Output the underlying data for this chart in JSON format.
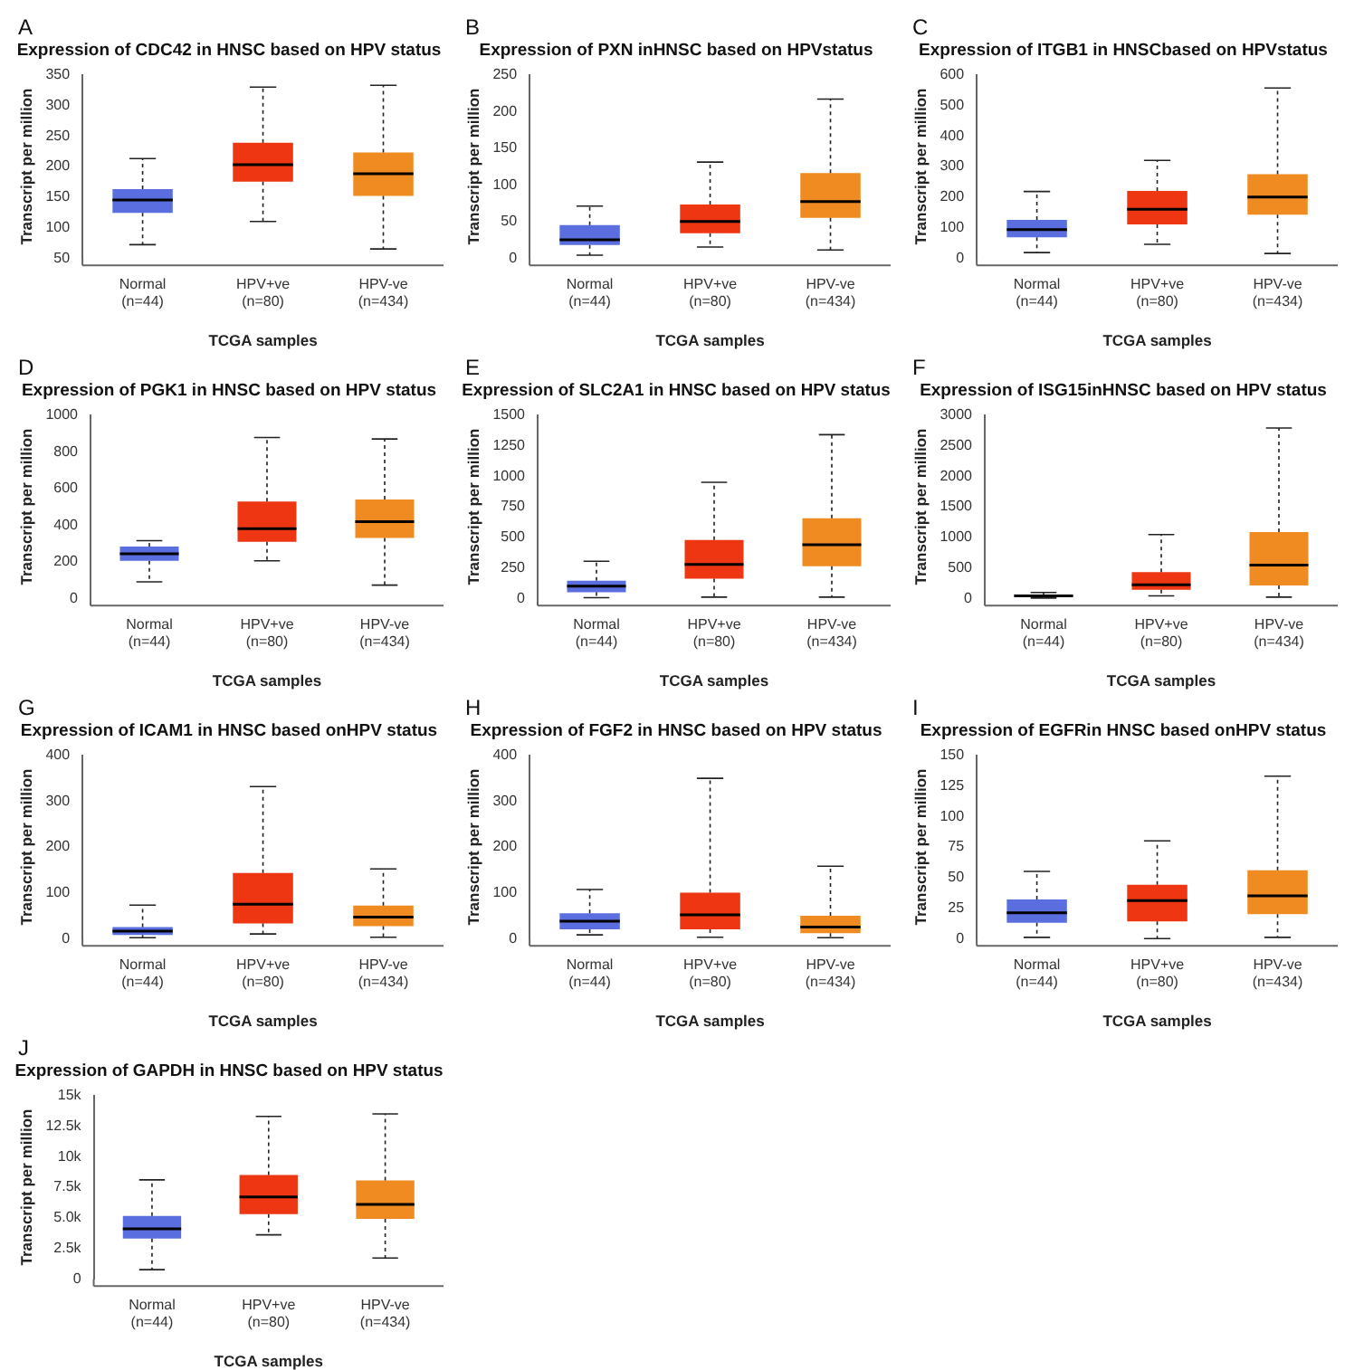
{
  "chart_data": [
    {
      "type": "box",
      "annotations": [
        "A"
      ],
      "title": "Expression of CDC42 in HNSC based on HPV status",
      "xlabel": "TCGA samples",
      "ylabel": "Transcript per million",
      "categories": [
        "Normal\n(n=44)",
        "HPV+ve\n(n=80)",
        "HPV-ve\n(n=434)"
      ],
      "colors": [
        "#5a6ee0",
        "#ee3613",
        "#f08b22"
      ],
      "ylim": [
        50,
        350
      ],
      "yticks": [
        50,
        100,
        150,
        200,
        250,
        300,
        350
      ],
      "grid": false,
      "legend": false,
      "boxes": [
        {
          "low": 72,
          "q1": 124,
          "median": 145,
          "q3": 163,
          "high": 213
        },
        {
          "low": 110,
          "q1": 175,
          "median": 203,
          "q3": 239,
          "high": 330
        },
        {
          "low": 65,
          "q1": 152,
          "median": 188,
          "q3": 223,
          "high": 333
        }
      ]
    },
    {
      "type": "box",
      "annotations": [
        "B"
      ],
      "title": "Expression of PXN inHNSC based on HPVstatus",
      "xlabel": "TCGA samples",
      "ylabel": "Transcript per million",
      "categories": [
        "Normal\n(n=44)",
        "HPV+ve\n(n=80)",
        "HPV-ve\n(n=434)"
      ],
      "colors": [
        "#5a6ee0",
        "#ee3613",
        "#f08b22"
      ],
      "ylim": [
        0,
        250
      ],
      "yticks": [
        0,
        50,
        100,
        150,
        200,
        250
      ],
      "grid": false,
      "legend": false,
      "boxes": [
        {
          "low": 4,
          "q1": 18,
          "median": 25,
          "q3": 45,
          "high": 71
        },
        {
          "low": 15,
          "q1": 34,
          "median": 50,
          "q3": 73,
          "high": 131
        },
        {
          "low": 11,
          "q1": 55,
          "median": 77,
          "q3": 116,
          "high": 217
        }
      ]
    },
    {
      "type": "box",
      "annotations": [
        "C"
      ],
      "title": "Expression of ITGB1 in HNSCbased on HPVstatus",
      "xlabel": "TCGA samples",
      "ylabel": "Transcript per million",
      "categories": [
        "Normal\n(n=44)",
        "HPV+ve\n(n=80)",
        "HPV-ve\n(n=434)"
      ],
      "colors": [
        "#5a6ee0",
        "#ee3613",
        "#f08b22"
      ],
      "ylim": [
        0,
        600
      ],
      "yticks": [
        0,
        100,
        200,
        300,
        400,
        500,
        600
      ],
      "grid": false,
      "legend": false,
      "boxes": [
        {
          "low": 18,
          "q1": 68,
          "median": 93,
          "q3": 125,
          "high": 218
        },
        {
          "low": 45,
          "q1": 110,
          "median": 160,
          "q3": 220,
          "high": 320
        },
        {
          "low": 15,
          "q1": 142,
          "median": 200,
          "q3": 275,
          "high": 557
        }
      ]
    },
    {
      "type": "box",
      "annotations": [
        "D"
      ],
      "title": "Expression of PGK1 in HNSC based on HPV status",
      "xlabel": "TCGA samples",
      "ylabel": "Transcript per million",
      "categories": [
        "Normal\n(n=44)",
        "HPV+ve\n(n=80)",
        "HPV-ve\n(n=434)"
      ],
      "colors": [
        "#5a6ee0",
        "#ee3613",
        "#f08b22"
      ],
      "ylim": [
        0,
        1000
      ],
      "yticks": [
        0,
        200,
        400,
        600,
        800,
        1000
      ],
      "grid": false,
      "legend": false,
      "boxes": [
        {
          "low": 90,
          "q1": 205,
          "median": 243,
          "q3": 282,
          "high": 315
        },
        {
          "low": 205,
          "q1": 308,
          "median": 380,
          "q3": 528,
          "high": 878
        },
        {
          "low": 72,
          "q1": 330,
          "median": 418,
          "q3": 540,
          "high": 870
        }
      ]
    },
    {
      "type": "box",
      "annotations": [
        "E"
      ],
      "title": "Expression of SLC2A1 in HNSC based on HPV status",
      "xlabel": "TCGA samples",
      "ylabel": "Transcript per million",
      "categories": [
        "Normal\n(n=44)",
        "HPV+ve\n(n=80)",
        "HPV-ve\n(n=434)"
      ],
      "colors": [
        "#5a6ee0",
        "#ee3613",
        "#f08b22"
      ],
      "ylim": [
        0,
        1500
      ],
      "yticks": [
        0,
        250,
        500,
        750,
        1000,
        1250,
        1500
      ],
      "grid": false,
      "legend": false,
      "boxes": [
        {
          "low": 5,
          "q1": 50,
          "median": 100,
          "q3": 145,
          "high": 303
        },
        {
          "low": 10,
          "q1": 160,
          "median": 278,
          "q3": 478,
          "high": 950
        },
        {
          "low": 10,
          "q1": 262,
          "median": 438,
          "q3": 655,
          "high": 1340
        }
      ]
    },
    {
      "type": "box",
      "annotations": [
        "F"
      ],
      "title": "Expression of ISG15inHNSC based on HPV status",
      "xlabel": "TCGA samples",
      "ylabel": "Transcript per million",
      "categories": [
        "Normal\n(n=44)",
        "HPV+ve\n(n=80)",
        "HPV-ve\n(n=434)"
      ],
      "colors": [
        "#5a6ee0",
        "#ee3613",
        "#f08b22"
      ],
      "ylim": [
        0,
        3000
      ],
      "yticks": [
        0,
        500,
        1000,
        1500,
        2000,
        2500,
        3000
      ],
      "grid": false,
      "legend": false,
      "boxes": [
        {
          "low": 5,
          "q1": 20,
          "median": 40,
          "q3": 60,
          "high": 95
        },
        {
          "low": 40,
          "q1": 140,
          "median": 220,
          "q3": 430,
          "high": 1045
        },
        {
          "low": 20,
          "q1": 210,
          "median": 545,
          "q3": 1085,
          "high": 2790
        }
      ]
    },
    {
      "type": "box",
      "annotations": [
        "G"
      ],
      "title": "Expression of ICAM1 in HNSC based onHPV status",
      "xlabel": "TCGA samples",
      "ylabel": "Transcript per million",
      "categories": [
        "Normal\n(n=44)",
        "HPV+ve\n(n=80)",
        "HPV-ve\n(n=434)"
      ],
      "colors": [
        "#5a6ee0",
        "#ee3613",
        "#f08b22"
      ],
      "ylim": [
        0,
        400
      ],
      "yticks": [
        0,
        100,
        200,
        300,
        400
      ],
      "grid": false,
      "legend": false,
      "boxes": [
        {
          "low": 2,
          "q1": 8,
          "median": 16,
          "q3": 25,
          "high": 73
        },
        {
          "low": 10,
          "q1": 33,
          "median": 75,
          "q3": 143,
          "high": 332
        },
        {
          "low": 3,
          "q1": 27,
          "median": 47,
          "q3": 72,
          "high": 152
        }
      ]
    },
    {
      "type": "box",
      "annotations": [
        "H"
      ],
      "title": "Expression of FGF2 in HNSC based on HPV status",
      "xlabel": "TCGA samples",
      "ylabel": "Transcript per million",
      "categories": [
        "Normal\n(n=44)",
        "HPV+ve\n(n=80)",
        "HPV-ve\n(n=434)"
      ],
      "colors": [
        "#5a6ee0",
        "#ee3613",
        "#f08b22"
      ],
      "ylim": [
        0,
        400
      ],
      "yticks": [
        0,
        100,
        200,
        300,
        400
      ],
      "grid": false,
      "legend": false,
      "boxes": [
        {
          "low": 8,
          "q1": 20,
          "median": 38,
          "q3": 55,
          "high": 107
        },
        {
          "low": 3,
          "q1": 20,
          "median": 52,
          "q3": 100,
          "high": 350
        },
        {
          "low": 2,
          "q1": 12,
          "median": 25,
          "q3": 50,
          "high": 158
        }
      ]
    },
    {
      "type": "box",
      "annotations": [
        "I"
      ],
      "title": "Expression of EGFRin HNSC based onHPV status",
      "xlabel": "TCGA samples",
      "ylabel": "Transcript per million",
      "categories": [
        "Normal\n(n=44)",
        "HPV+ve\n(n=80)",
        "HPV-ve\n(n=434)"
      ],
      "colors": [
        "#5a6ee0",
        "#ee3613",
        "#f08b22"
      ],
      "ylim": [
        0,
        150
      ],
      "yticks": [
        0,
        25,
        50,
        75,
        100,
        125,
        150
      ],
      "grid": false,
      "legend": false,
      "boxes": [
        {
          "low": 1,
          "q1": 13,
          "median": 21,
          "q3": 32,
          "high": 55
        },
        {
          "low": 0,
          "q1": 14,
          "median": 31,
          "q3": 44,
          "high": 80
        },
        {
          "low": 1,
          "q1": 20,
          "median": 35,
          "q3": 56,
          "high": 133
        }
      ]
    },
    {
      "type": "box",
      "annotations": [
        "J"
      ],
      "title": "Expression of GAPDH in HNSC based on HPV status",
      "xlabel": "TCGA samples",
      "ylabel": "Transcript per million",
      "categories": [
        "Normal\n(n=44)",
        "HPV+ve\n(n=80)",
        "HPV-ve\n(n=434)"
      ],
      "colors": [
        "#5a6ee0",
        "#ee3613",
        "#f08b22"
      ],
      "ylim": [
        0,
        15000
      ],
      "yticks": [
        0,
        {
          "value": 2500,
          "label": "2.5k"
        },
        {
          "value": 5000,
          "label": "5.0k"
        },
        {
          "value": 7500,
          "label": "7.5k"
        },
        {
          "value": 10000,
          "label": "10k"
        },
        {
          "value": 12500,
          "label": "12.5k"
        },
        {
          "value": 15000,
          "label": "15k"
        }
      ],
      "grid": false,
      "legend": false,
      "boxes": [
        {
          "low": 750,
          "q1": 3300,
          "median": 4100,
          "q3": 5150,
          "high": 8100
        },
        {
          "low": 3600,
          "q1": 5300,
          "median": 6700,
          "q3": 8500,
          "high": 13300
        },
        {
          "low": 1700,
          "q1": 4900,
          "median": 6100,
          "q3": 8050,
          "high": 13500
        }
      ]
    }
  ]
}
